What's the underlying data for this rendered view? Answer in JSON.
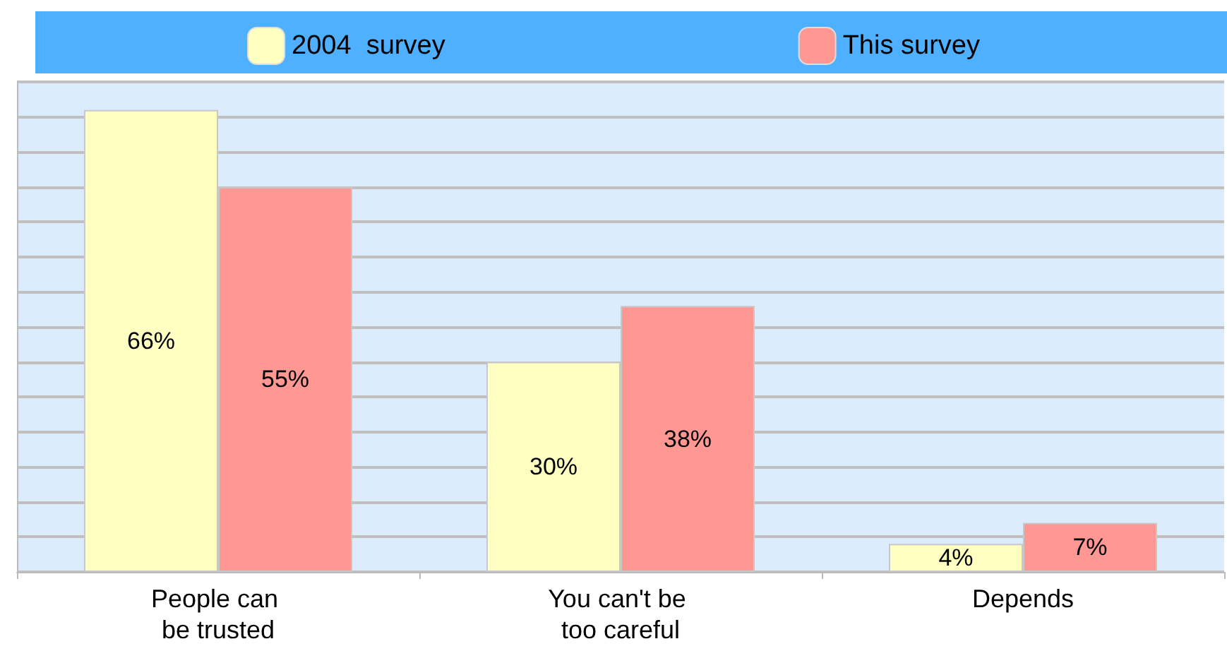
{
  "chart_data": {
    "type": "bar",
    "categories": [
      "People can be trusted",
      "You can't be too careful",
      "Depends"
    ],
    "series": [
      {
        "name": "2004  survey",
        "color": "#ffffc2",
        "values": [
          66,
          30,
          4
        ],
        "value_labels": [
          "66%",
          "30%",
          "4%"
        ]
      },
      {
        "name": "This survey",
        "color": "#ff9893",
        "values": [
          55,
          38,
          7
        ],
        "value_labels": [
          "55%",
          "38%",
          "7%"
        ]
      }
    ],
    "tick_labels": "x",
    "grid": "y",
    "legend": "top"
  }
}
